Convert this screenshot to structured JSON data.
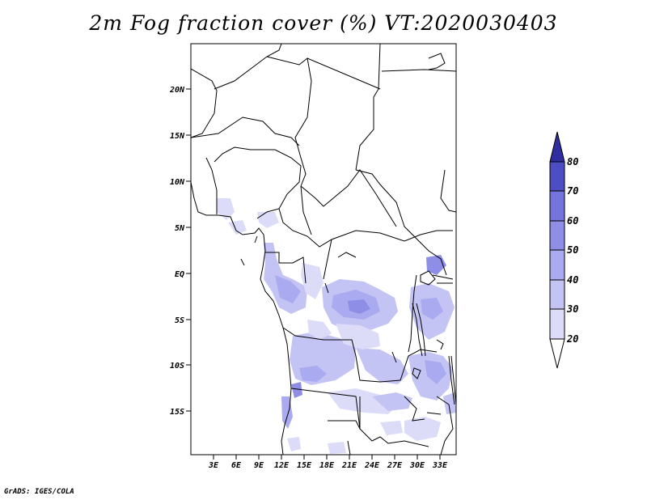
{
  "title": "2m Fog fraction cover (%) VT:2020030403",
  "credit": "GrADS: IGES/COLA",
  "lat_labels": [
    "20N",
    "15N",
    "10N",
    "5N",
    "EQ",
    "5S",
    "10S",
    "15S"
  ],
  "lon_labels": [
    "3E",
    "6E",
    "9E",
    "12E",
    "15E",
    "18E",
    "21E",
    "24E",
    "27E",
    "30E",
    "33E"
  ],
  "colorbar": {
    "levels": [
      "20",
      "30",
      "40",
      "50",
      "60",
      "70",
      "80"
    ],
    "colors": [
      "#dcdcf8",
      "#c4c4f4",
      "#aaaaf0",
      "#8e8ee6",
      "#7474dc",
      "#4e4ec4",
      "#2e2ea0"
    ]
  }
}
